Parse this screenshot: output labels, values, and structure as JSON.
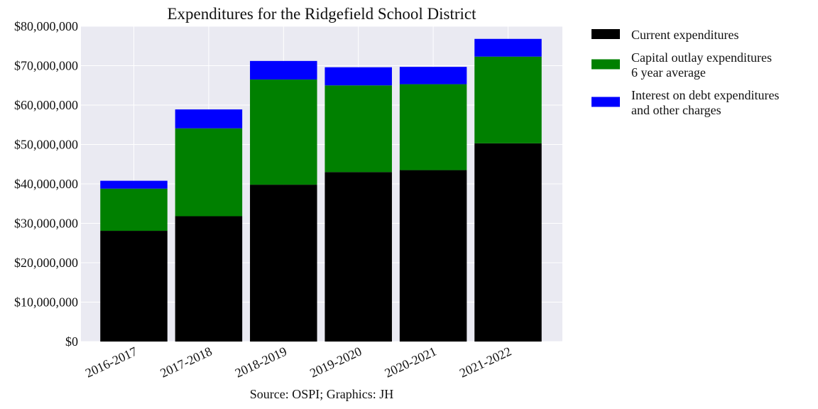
{
  "chart_data": {
    "type": "bar",
    "stacked": true,
    "title": "Expenditures for the Ridgefield School District",
    "caption": "Source: OSPI; Graphics: JH",
    "xlabel": "",
    "ylabel": "",
    "categories": [
      "2016-2017",
      "2017-2018",
      "2018-2019",
      "2019-2020",
      "2020-2021",
      "2021-2022"
    ],
    "series": [
      {
        "name": "Current expenditures",
        "color": "#000000",
        "values": [
          28100000,
          31800000,
          39800000,
          43000000,
          43500000,
          50300000
        ]
      },
      {
        "name": "Capital outlay expenditures\n6 year average",
        "color": "#008000",
        "values": [
          10700000,
          22300000,
          26700000,
          22000000,
          21800000,
          22000000
        ]
      },
      {
        "name": "Interest on debt expenditures\nand other charges",
        "color": "#0000ff",
        "values": [
          2000000,
          4800000,
          4700000,
          4600000,
          4400000,
          4500000
        ]
      }
    ],
    "ylim": [
      0,
      80000000
    ],
    "yticks": [
      0,
      10000000,
      20000000,
      30000000,
      40000000,
      50000000,
      60000000,
      70000000,
      80000000
    ],
    "ytick_labels": [
      "$0",
      "$10,000,000",
      "$20,000,000",
      "$30,000,000",
      "$40,000,000",
      "$50,000,000",
      "$60,000,000",
      "$70,000,000",
      "$80,000,000"
    ],
    "grid": true,
    "legend_position": "outside-right-top"
  }
}
